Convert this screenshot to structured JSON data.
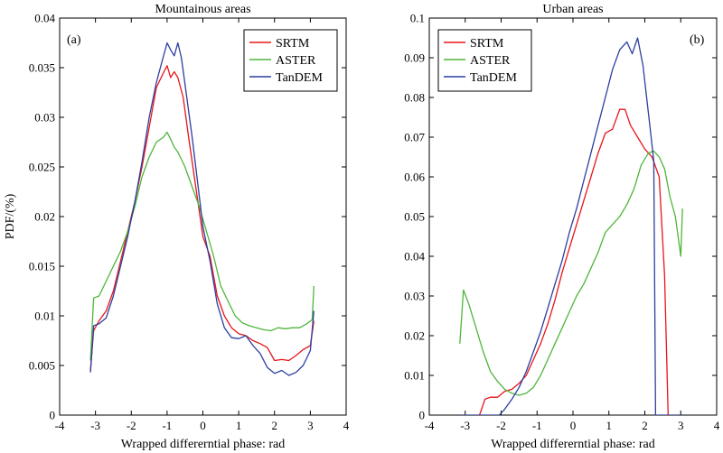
{
  "chart_data": [
    {
      "type": "line",
      "title": "Mountainous areas",
      "panel_label": "(a)",
      "xlabel": "Wrapped differerntial phase: rad",
      "ylabel": "PDF/(%)",
      "xlim": [
        -4,
        4
      ],
      "ylim": [
        0,
        0.04
      ],
      "xticks": [
        -4,
        -3,
        -2,
        -1,
        0,
        1,
        2,
        3,
        4
      ],
      "xtick_labels": [
        "-4",
        "-3",
        "-2",
        "-1",
        "0",
        "1",
        "2",
        "3",
        "4"
      ],
      "yticks": [
        0,
        0.005,
        0.01,
        0.015,
        0.02,
        0.025,
        0.03,
        0.035,
        0.04
      ],
      "ytick_labels": [
        "0",
        "0.005",
        "0.01",
        "0.015",
        "0.02",
        "0.025",
        "0.03",
        "0.035",
        "0.04"
      ],
      "legend_position": "top-right",
      "series": [
        {
          "name": "SRTM",
          "color": "#e8151b",
          "x": [
            -3.14,
            -3.05,
            -2.9,
            -2.7,
            -2.5,
            -2.3,
            -2.1,
            -1.9,
            -1.7,
            -1.5,
            -1.3,
            -1.1,
            -1.0,
            -0.9,
            -0.8,
            -0.7,
            -0.55,
            -0.4,
            -0.2,
            0.0,
            0.2,
            0.4,
            0.6,
            0.8,
            1.0,
            1.2,
            1.4,
            1.6,
            1.8,
            2.0,
            2.2,
            2.4,
            2.6,
            2.8,
            3.0,
            3.1
          ],
          "y": [
            0.0045,
            0.0085,
            0.0095,
            0.0105,
            0.0125,
            0.0155,
            0.0185,
            0.0215,
            0.025,
            0.029,
            0.033,
            0.0345,
            0.0352,
            0.034,
            0.0346,
            0.034,
            0.032,
            0.028,
            0.023,
            0.018,
            0.016,
            0.012,
            0.01,
            0.0088,
            0.0082,
            0.008,
            0.0075,
            0.0072,
            0.0068,
            0.0055,
            0.0056,
            0.0055,
            0.006,
            0.0066,
            0.007,
            0.0095
          ]
        },
        {
          "name": "ASTER",
          "color": "#4fb53a",
          "x": [
            -3.14,
            -3.05,
            -2.9,
            -2.7,
            -2.5,
            -2.3,
            -2.1,
            -1.9,
            -1.7,
            -1.5,
            -1.3,
            -1.1,
            -1.0,
            -0.9,
            -0.8,
            -0.7,
            -0.5,
            -0.3,
            -0.1,
            0.1,
            0.3,
            0.5,
            0.7,
            0.9,
            1.1,
            1.3,
            1.5,
            1.7,
            1.9,
            2.1,
            2.3,
            2.5,
            2.7,
            2.9,
            3.05,
            3.1
          ],
          "y": [
            0.0055,
            0.0118,
            0.012,
            0.0135,
            0.015,
            0.0165,
            0.0185,
            0.021,
            0.024,
            0.026,
            0.0275,
            0.028,
            0.0285,
            0.0278,
            0.027,
            0.0265,
            0.025,
            0.023,
            0.021,
            0.0185,
            0.016,
            0.013,
            0.0115,
            0.01,
            0.0093,
            0.009,
            0.0088,
            0.0086,
            0.0085,
            0.0088,
            0.0087,
            0.0088,
            0.0088,
            0.0092,
            0.0096,
            0.013
          ]
        },
        {
          "name": "TanDEM",
          "color": "#2b3fa0",
          "x": [
            -3.14,
            -3.05,
            -2.9,
            -2.7,
            -2.5,
            -2.3,
            -2.1,
            -1.9,
            -1.7,
            -1.5,
            -1.3,
            -1.15,
            -1.0,
            -0.9,
            -0.8,
            -0.7,
            -0.6,
            -0.45,
            -0.3,
            -0.15,
            0.0,
            0.2,
            0.4,
            0.6,
            0.8,
            1.0,
            1.2,
            1.4,
            1.6,
            1.8,
            2.0,
            2.2,
            2.4,
            2.6,
            2.8,
            3.0,
            3.1
          ],
          "y": [
            0.0043,
            0.009,
            0.0092,
            0.0098,
            0.012,
            0.015,
            0.018,
            0.0215,
            0.0255,
            0.03,
            0.0335,
            0.0355,
            0.0375,
            0.0368,
            0.0362,
            0.0375,
            0.036,
            0.032,
            0.028,
            0.0235,
            0.019,
            0.0155,
            0.0112,
            0.0088,
            0.0078,
            0.0077,
            0.008,
            0.007,
            0.0062,
            0.0048,
            0.0042,
            0.0045,
            0.004,
            0.0043,
            0.005,
            0.0065,
            0.0105
          ]
        }
      ]
    },
    {
      "type": "line",
      "title": "Urban areas",
      "panel_label": "(b)",
      "xlabel": "Wrapped differerntial phase: rad",
      "ylabel": "",
      "xlim": [
        -4,
        4
      ],
      "ylim": [
        0,
        0.1
      ],
      "xticks": [
        -4,
        -3,
        -2,
        -1,
        0,
        1,
        2,
        3,
        4
      ],
      "xtick_labels": [
        "-4",
        "-3",
        "-2",
        "-1",
        "0",
        "1",
        "2",
        "3",
        "4"
      ],
      "yticks": [
        0,
        0.01,
        0.02,
        0.03,
        0.04,
        0.05,
        0.06,
        0.07,
        0.08,
        0.09,
        0.1
      ],
      "ytick_labels": [
        "0",
        "0.01",
        "0.02",
        "0.03",
        "0.04",
        "0.05",
        "0.06",
        "0.07",
        "0.08",
        "0.09",
        "0.1"
      ],
      "legend_position": "top-left",
      "series": [
        {
          "name": "SRTM",
          "color": "#e8151b",
          "x": [
            -2.6,
            -2.45,
            -2.3,
            -2.1,
            -1.9,
            -1.7,
            -1.5,
            -1.3,
            -1.1,
            -0.9,
            -0.7,
            -0.5,
            -0.3,
            -0.1,
            0.1,
            0.3,
            0.5,
            0.7,
            0.9,
            1.1,
            1.3,
            1.45,
            1.6,
            1.8,
            2.0,
            2.2,
            2.4,
            2.55,
            2.65
          ],
          "y": [
            0.0,
            0.004,
            0.0045,
            0.0045,
            0.006,
            0.0065,
            0.008,
            0.01,
            0.014,
            0.018,
            0.023,
            0.029,
            0.036,
            0.042,
            0.048,
            0.054,
            0.06,
            0.066,
            0.071,
            0.072,
            0.077,
            0.077,
            0.073,
            0.07,
            0.067,
            0.065,
            0.06,
            0.035,
            0.0
          ]
        },
        {
          "name": "ASTER",
          "color": "#4fb53a",
          "x": [
            -3.15,
            -3.05,
            -2.9,
            -2.7,
            -2.5,
            -2.3,
            -2.1,
            -1.9,
            -1.7,
            -1.5,
            -1.3,
            -1.1,
            -0.9,
            -0.7,
            -0.5,
            -0.3,
            -0.1,
            0.1,
            0.3,
            0.5,
            0.7,
            0.9,
            1.1,
            1.3,
            1.5,
            1.7,
            1.9,
            2.1,
            2.25,
            2.4,
            2.55,
            2.7,
            2.85,
            3.0,
            3.05
          ],
          "y": [
            0.018,
            0.0315,
            0.028,
            0.022,
            0.016,
            0.011,
            0.0085,
            0.0065,
            0.0055,
            0.005,
            0.0055,
            0.007,
            0.01,
            0.014,
            0.018,
            0.022,
            0.026,
            0.03,
            0.033,
            0.037,
            0.041,
            0.046,
            0.048,
            0.05,
            0.053,
            0.057,
            0.063,
            0.066,
            0.0665,
            0.065,
            0.062,
            0.055,
            0.05,
            0.04,
            0.052
          ]
        },
        {
          "name": "TanDEM",
          "color": "#2b3fa0",
          "x": [
            -3.1,
            -2.05,
            -1.9,
            -1.7,
            -1.5,
            -1.3,
            -1.1,
            -0.9,
            -0.7,
            -0.5,
            -0.3,
            -0.1,
            0.1,
            0.3,
            0.5,
            0.7,
            0.9,
            1.1,
            1.3,
            1.5,
            1.65,
            1.8,
            1.95,
            2.05,
            2.15,
            2.25,
            2.3,
            3.0
          ],
          "y": [
            0.0,
            0.0,
            0.0015,
            0.004,
            0.007,
            0.011,
            0.016,
            0.021,
            0.027,
            0.033,
            0.039,
            0.046,
            0.052,
            0.059,
            0.066,
            0.073,
            0.08,
            0.087,
            0.092,
            0.094,
            0.091,
            0.095,
            0.088,
            0.08,
            0.072,
            0.064,
            0.0,
            0.0
          ]
        }
      ]
    }
  ]
}
